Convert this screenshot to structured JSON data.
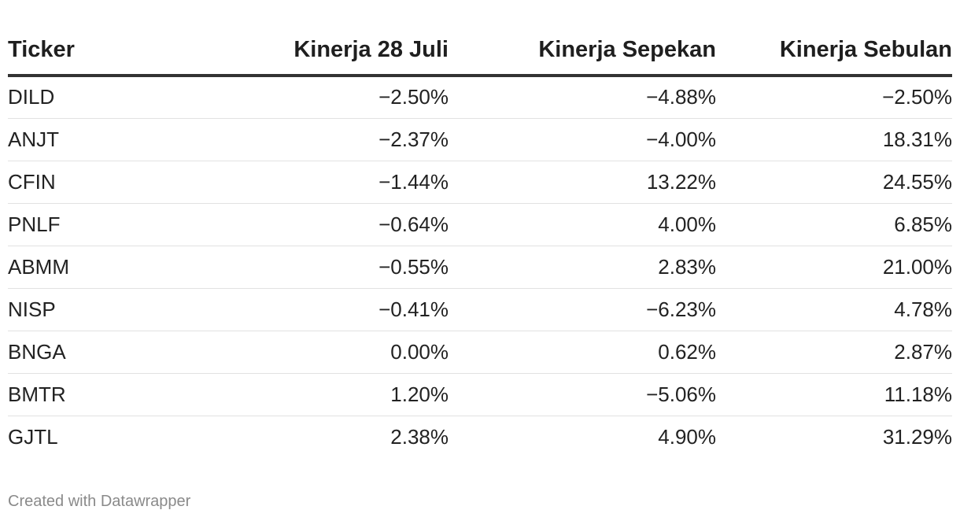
{
  "chart_data": {
    "type": "table",
    "columns": [
      "Ticker",
      "Kinerja 28 Juli",
      "Kinerja Sepekan",
      "Kinerja Sebulan"
    ],
    "rows": [
      [
        "DILD",
        "−2.50%",
        "−4.88%",
        "−2.50%"
      ],
      [
        "ANJT",
        "−2.37%",
        "−4.00%",
        "18.31%"
      ],
      [
        "CFIN",
        "−1.44%",
        "13.22%",
        "24.55%"
      ],
      [
        "PNLF",
        "−0.64%",
        "4.00%",
        "6.85%"
      ],
      [
        "ABMM",
        "−0.55%",
        "2.83%",
        "21.00%"
      ],
      [
        "NISP",
        "−0.41%",
        "−6.23%",
        "4.78%"
      ],
      [
        "BNGA",
        "0.00%",
        "0.62%",
        "2.87%"
      ],
      [
        "BMTR",
        "1.20%",
        "−5.06%",
        "11.18%"
      ],
      [
        "GJTL",
        "2.38%",
        "4.90%",
        "31.29%"
      ]
    ]
  },
  "footer": "Created with Datawrapper"
}
